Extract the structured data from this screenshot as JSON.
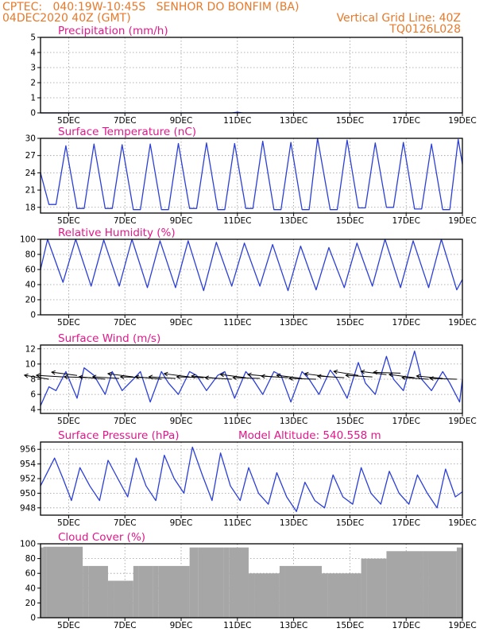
{
  "header": {
    "line1_left": "CPTEC:   040:19W-10:45S   SENHOR DO BONFIM (BA)",
    "line2_left": "04DEC2020 40Z (GMT)",
    "line2_right": "Vertical Grid Line: 40Z",
    "line3_right": "TQ0126L028"
  },
  "colors": {
    "header": "#e8792a",
    "panel_title": "#e0188a",
    "series": "#2b3fd6",
    "cloud": "#a6a6a6",
    "wind_vector": "#000000"
  },
  "x_axis": {
    "start_day": 4,
    "end_day": 19,
    "tick_labels": [
      "5DEC",
      "7DEC",
      "9DEC",
      "11DEC",
      "13DEC",
      "15DEC",
      "17DEC",
      "19DEC"
    ],
    "tick_days": [
      5,
      7,
      9,
      11,
      13,
      15,
      17,
      19
    ]
  },
  "panels": [
    {
      "id": "precip",
      "title": "Precipitation (mm/h)",
      "ylim": [
        0,
        5
      ],
      "yticks": [
        "0",
        "1",
        "2",
        "3",
        "4",
        "5"
      ],
      "type": "line"
    },
    {
      "id": "temp",
      "title": "Surface Temperature (nC)",
      "ylim": [
        17,
        30
      ],
      "yticks": [
        "18",
        "21",
        "24",
        "27",
        "30"
      ],
      "type": "line"
    },
    {
      "id": "rh",
      "title": "Relative Humidity (%)",
      "ylim": [
        0,
        100
      ],
      "yticks": [
        "0",
        "20",
        "40",
        "60",
        "80",
        "100"
      ],
      "type": "line"
    },
    {
      "id": "wind",
      "title": "Surface Wind (m/s)",
      "ylim": [
        3.5,
        12.5
      ],
      "yticks": [
        "4",
        "6",
        "8",
        "10",
        "12"
      ],
      "type": "line+vectors"
    },
    {
      "id": "press",
      "title": "Surface Pressure (hPa)",
      "extra": "Model Altitude: 540.558 m",
      "ylim": [
        947,
        957
      ],
      "yticks": [
        "948",
        "950",
        "952",
        "954",
        "956"
      ],
      "type": "line"
    },
    {
      "id": "cloud",
      "title": "Cloud Cover (%)",
      "ylim": [
        0,
        100
      ],
      "yticks": [
        "0",
        "20",
        "40",
        "60",
        "80",
        "100"
      ],
      "type": "bar"
    }
  ],
  "chart_data": {
    "type": "line",
    "x_unit": "day of December 2020",
    "precipitation": {
      "x": [
        4,
        10.8,
        11.0,
        11.2,
        19
      ],
      "y": [
        0,
        0,
        0.05,
        0,
        0
      ]
    },
    "temperature": {
      "x": [
        4.0,
        4.3,
        4.55,
        4.9,
        5.3,
        5.55,
        5.9,
        6.3,
        6.55,
        6.9,
        7.3,
        7.55,
        7.9,
        8.3,
        8.55,
        8.9,
        9.3,
        9.55,
        9.9,
        10.3,
        10.55,
        10.9,
        11.3,
        11.55,
        11.9,
        12.3,
        12.55,
        12.9,
        13.3,
        13.55,
        13.85,
        14.3,
        14.55,
        14.9,
        15.3,
        15.55,
        15.9,
        16.3,
        16.55,
        16.9,
        17.3,
        17.55,
        17.9,
        18.3,
        18.55,
        18.85,
        19.0
      ],
      "y": [
        24,
        18.5,
        18.5,
        28.7,
        17.8,
        17.8,
        29,
        17.8,
        17.8,
        28.9,
        17.6,
        17.6,
        29,
        17.6,
        17.6,
        29.1,
        17.8,
        17.8,
        29.2,
        17.6,
        17.6,
        29.1,
        17.8,
        17.8,
        29.5,
        17.6,
        17.6,
        29.3,
        17.6,
        17.6,
        30,
        17.6,
        17.6,
        29.7,
        17.9,
        17.9,
        29.2,
        18,
        18,
        29.3,
        17.7,
        17.7,
        29,
        17.6,
        17.6,
        29.8,
        25.5
      ]
    },
    "humidity": {
      "x": [
        4.0,
        4.25,
        4.8,
        5.25,
        5.8,
        6.25,
        6.8,
        7.25,
        7.8,
        8.25,
        8.8,
        9.25,
        9.8,
        10.25,
        10.8,
        11.25,
        11.8,
        12.25,
        12.8,
        13.25,
        13.8,
        14.25,
        14.8,
        15.25,
        15.8,
        16.25,
        16.8,
        17.25,
        17.8,
        18.25,
        18.8,
        19.0
      ],
      "y": [
        60,
        100,
        43,
        100,
        38,
        99,
        38,
        100,
        36,
        98,
        36,
        98,
        32,
        96,
        38,
        95,
        38,
        93,
        32,
        91,
        33,
        89,
        36,
        95,
        38,
        100,
        36,
        98,
        36,
        100,
        33,
        47
      ]
    },
    "wind": {
      "x": [
        4.0,
        4.3,
        4.55,
        4.9,
        5.3,
        5.55,
        5.9,
        6.3,
        6.55,
        6.9,
        7.3,
        7.55,
        7.9,
        8.3,
        8.55,
        8.9,
        9.3,
        9.55,
        9.9,
        10.3,
        10.55,
        10.9,
        11.3,
        11.55,
        11.9,
        12.3,
        12.55,
        12.9,
        13.3,
        13.55,
        13.9,
        14.3,
        14.55,
        14.9,
        15.3,
        15.55,
        15.9,
        16.3,
        16.55,
        16.9,
        17.3,
        17.55,
        17.9,
        18.3,
        18.55,
        18.9,
        19.0
      ],
      "y": [
        4.5,
        7,
        6.5,
        9,
        5.5,
        9.5,
        8.5,
        6,
        9,
        6.5,
        8,
        9,
        5,
        9,
        7.5,
        6,
        9,
        8.5,
        6.5,
        8.5,
        9,
        5.5,
        9,
        8,
        6,
        9,
        8.5,
        5,
        9,
        8,
        6,
        9.2,
        8,
        5.5,
        10.2,
        7.5,
        6,
        11,
        8,
        6.5,
        11.7,
        8,
        6.5,
        9,
        7.5,
        5,
        8
      ]
    },
    "pressure": {
      "x": [
        4.0,
        4.5,
        4.8,
        5.1,
        5.4,
        5.75,
        6.1,
        6.4,
        6.75,
        7.1,
        7.4,
        7.75,
        8.1,
        8.4,
        8.75,
        9.1,
        9.4,
        9.75,
        10.1,
        10.4,
        10.75,
        11.1,
        11.4,
        11.75,
        12.1,
        12.4,
        12.75,
        13.1,
        13.4,
        13.75,
        14.1,
        14.4,
        14.75,
        15.1,
        15.4,
        15.75,
        16.1,
        16.4,
        16.75,
        17.1,
        17.4,
        17.75,
        18.1,
        18.4,
        18.75,
        19.0
      ],
      "y": [
        951,
        954.8,
        952,
        949,
        953.5,
        951,
        949,
        954.5,
        952,
        949.5,
        954.8,
        951,
        949,
        955.2,
        952,
        950,
        956.3,
        952.5,
        949,
        955.5,
        951,
        949,
        953.5,
        950,
        948.5,
        952.8,
        949.5,
        947.5,
        951.5,
        949,
        948,
        952.5,
        949.5,
        948.5,
        953.5,
        950,
        948.5,
        953,
        950,
        948.5,
        952.5,
        950,
        948,
        953.3,
        949.5,
        950.2
      ]
    },
    "cloud_cover": {
      "x": [
        4.0,
        4.1,
        4.2,
        5.5,
        5.7,
        6.4,
        6.6,
        7.3,
        7.5,
        8.0,
        8.2,
        9.3,
        9.6,
        10.5,
        10.7,
        11.4,
        11.6,
        12.5,
        12.7,
        14.0,
        14.2,
        15.4,
        15.6,
        16.3,
        16.5,
        17.6,
        17.8,
        18.8,
        19.0
      ],
      "y": [
        10,
        95,
        96,
        10,
        70,
        20,
        50,
        15,
        70,
        10,
        70,
        20,
        95,
        90,
        95,
        10,
        60,
        20,
        70,
        15,
        60,
        45,
        80,
        20,
        90,
        10,
        90,
        85,
        95
      ]
    },
    "wind_vectors": {
      "x": [
        4.3,
        4.8,
        5.3,
        5.8,
        6.3,
        6.8,
        7.3,
        7.8,
        8.3,
        8.8,
        9.3,
        9.8,
        10.3,
        10.8,
        11.3,
        11.8,
        12.3,
        12.8,
        13.3,
        13.8,
        14.3,
        14.8,
        15.3,
        15.8,
        16.3,
        16.8,
        17.3,
        17.8,
        18.3,
        18.8
      ],
      "speed": [
        8,
        8.3,
        8.5,
        8.2,
        8,
        8.1,
        8.3,
        8.2,
        8,
        8.1,
        8.3,
        8.2,
        8.1,
        8,
        8.2,
        8.1,
        8.3,
        8.2,
        8.1,
        8,
        8.3,
        8.2,
        8.5,
        8.3,
        8.6,
        8.8,
        8.2,
        8,
        8.1,
        8
      ],
      "dir_deg": [
        155,
        170,
        160,
        175,
        165,
        170,
        160,
        175,
        165,
        170,
        160,
        175,
        165,
        170,
        160,
        175,
        165,
        170,
        160,
        175,
        160,
        170,
        155,
        170,
        160,
        175,
        160,
        170,
        165,
        175
      ]
    }
  }
}
